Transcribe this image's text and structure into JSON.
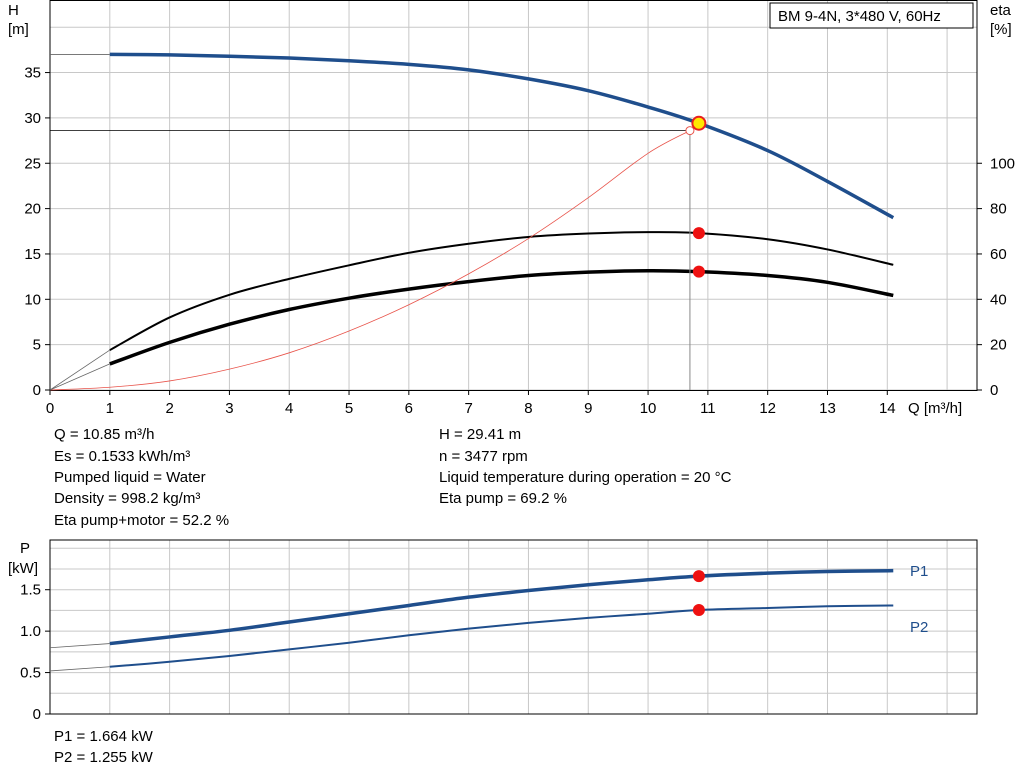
{
  "chart_data": [
    {
      "type": "line",
      "title": "BM 9-4N, 3*480 V, 60Hz",
      "xlabel": "Q [m³/h]",
      "ylabel_left": [
        "H",
        "[m]"
      ],
      "ylabel_right": [
        "eta",
        "[%]"
      ],
      "xlim": [
        0,
        15.5
      ],
      "xticks": [
        "0",
        "1",
        "2",
        "3",
        "4",
        "5",
        "6",
        "7",
        "8",
        "9",
        "10",
        "11",
        "12",
        "13",
        "14"
      ],
      "ylim_left": [
        0,
        43
      ],
      "yticks_left": [
        "0",
        "5",
        "10",
        "15",
        "20",
        "25",
        "30",
        "35"
      ],
      "ylim_right": [
        0,
        172
      ],
      "yticks_right": [
        "0",
        "20",
        "40",
        "60",
        "80",
        "100"
      ],
      "grid": true,
      "series": [
        {
          "name": "H",
          "axis": "left",
          "color": "#1f4e8c",
          "x": [
            1,
            2,
            3,
            4,
            5,
            6,
            7,
            8,
            9,
            10,
            10.85,
            12,
            13,
            14.1
          ],
          "y": [
            37,
            36.95,
            36.8,
            36.6,
            36.3,
            35.9,
            35.3,
            34.3,
            33,
            31.2,
            29.41,
            26.4,
            23,
            19
          ]
        },
        {
          "name": "Eta pump",
          "axis": "right",
          "color": "#000000",
          "x": [
            1,
            2,
            3,
            4,
            5,
            6,
            7,
            8,
            9,
            10,
            10.85,
            12,
            13,
            14.1
          ],
          "y": [
            17.6,
            32,
            42,
            49,
            55,
            60.5,
            64.5,
            67.5,
            69,
            69.6,
            69.2,
            66.5,
            62,
            55.2
          ]
        },
        {
          "name": "Eta pump+motor",
          "axis": "right",
          "color": "#000000",
          "x": [
            1,
            2,
            3,
            4,
            5,
            6,
            7,
            8,
            9,
            10,
            10.85,
            12,
            13,
            14.1
          ],
          "y": [
            11.5,
            21,
            29,
            35.5,
            40.5,
            44.5,
            47.8,
            50.5,
            52,
            52.6,
            52.2,
            50.5,
            47.5,
            41.7
          ]
        },
        {
          "name": "System curve",
          "axis": "left",
          "color": "#e8534a",
          "x": [
            0,
            1,
            2,
            3,
            4,
            5,
            6,
            7,
            8,
            9,
            10,
            10.7
          ],
          "y": [
            0,
            0.3,
            1,
            2.3,
            4.1,
            6.5,
            9.4,
            12.8,
            16.7,
            21.2,
            26.1,
            28.6
          ]
        }
      ],
      "duty_point": {
        "x": 10.85,
        "H": 29.41,
        "eta_pump": 69.2,
        "eta_pump_motor": 52.2
      },
      "working_lines": {
        "x": 10.7,
        "y": 28.6
      }
    },
    {
      "type": "line",
      "ylabel": [
        "P",
        "[kW]"
      ],
      "xlim": [
        0,
        15.5
      ],
      "ylim": [
        0,
        2.1
      ],
      "yticks": [
        "0",
        "0.5",
        "1.0",
        "1.5"
      ],
      "grid": true,
      "series": [
        {
          "name": "P1",
          "color": "#1f4e8c",
          "x": [
            1,
            2,
            3,
            4,
            5,
            6,
            7,
            8,
            9,
            10,
            10.85,
            12,
            13,
            14.1
          ],
          "y": [
            0.85,
            0.93,
            1.01,
            1.11,
            1.21,
            1.31,
            1.41,
            1.49,
            1.56,
            1.62,
            1.664,
            1.7,
            1.72,
            1.73
          ]
        },
        {
          "name": "P2",
          "color": "#1f4e8c",
          "x": [
            1,
            2,
            3,
            4,
            5,
            6,
            7,
            8,
            9,
            10,
            10.85,
            12,
            13,
            14.1
          ],
          "y": [
            0.57,
            0.63,
            0.7,
            0.78,
            0.86,
            0.95,
            1.03,
            1.1,
            1.16,
            1.21,
            1.255,
            1.28,
            1.3,
            1.31
          ]
        }
      ],
      "duty_point": {
        "x": 10.85,
        "P1": 1.664,
        "P2": 1.255
      }
    }
  ],
  "info_left": [
    "Q = 10.85 m³/h",
    "Es = 0.1533 kWh/m³",
    "Pumped liquid = Water",
    "Density = 998.2 kg/m³",
    "Eta pump+motor = 52.2 %"
  ],
  "info_right": [
    "H = 29.41 m",
    "n = 3477 rpm",
    "Liquid temperature during operation = 20 °C",
    "Eta pump = 69.2 %"
  ],
  "power_info": [
    "P1 = 1.664 kW",
    "P2 = 1.255 kW"
  ]
}
